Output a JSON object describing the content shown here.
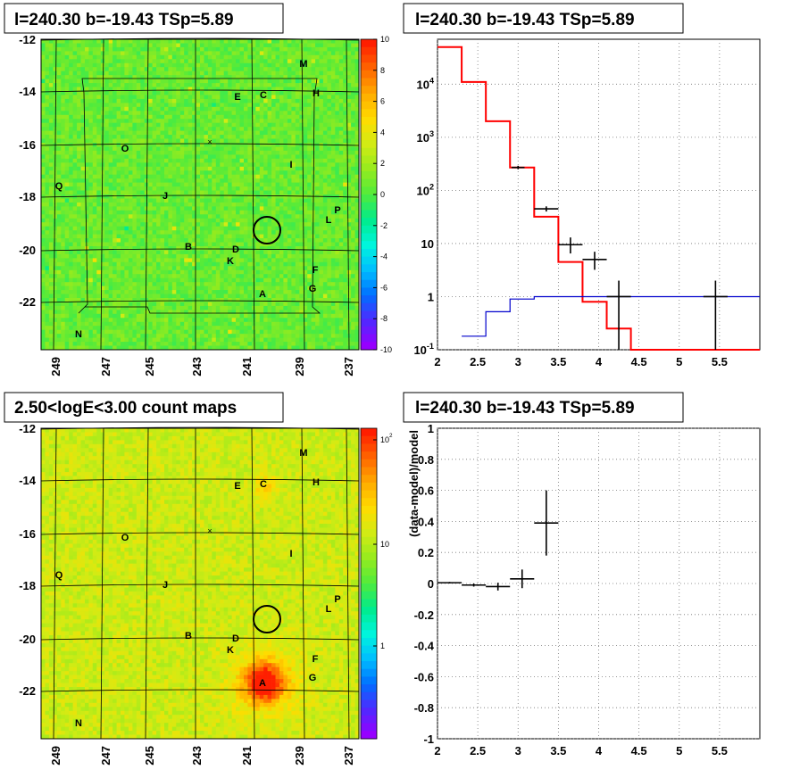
{
  "colors": {
    "background": "#ffffff",
    "model": "#ff0000",
    "background_model": "#0000cc",
    "data": "#000000",
    "grid": "#555555"
  },
  "chart_data": [
    {
      "type": "heatmap",
      "title": "l=240.30 b=-19.43 TSp=5.89",
      "xticks": [
        "249",
        "247",
        "245",
        "243",
        "241",
        "239",
        "237"
      ],
      "yticks": [
        "-12",
        "-14",
        "-16",
        "-18",
        "-20",
        "-22"
      ],
      "colorbar_ticks": [
        "10",
        "8",
        "6",
        "4",
        "2",
        "0",
        "-2",
        "-4",
        "-6",
        "-8",
        "-10"
      ],
      "zlim": [
        -10,
        10
      ],
      "sources": [
        "M",
        "E",
        "C",
        "H",
        "O",
        "I",
        "Q",
        "J",
        "L",
        "P",
        "B",
        "D",
        "K",
        "F",
        "G",
        "A",
        "N"
      ]
    },
    {
      "type": "line",
      "title": "l=240.30 b=-19.43 TSp=5.89",
      "xticks": [
        "2",
        "2.5",
        "3",
        "3.5",
        "4",
        "4.5",
        "5",
        "5.5"
      ],
      "yticks": [
        "10^4",
        "10^3",
        "10^2",
        "10",
        "1",
        "10^-1"
      ],
      "xlim": [
        2,
        6
      ],
      "ylim": [
        0.1,
        70000
      ],
      "log_y": true,
      "grid": true,
      "series": [
        {
          "values_step": {
            "edges": [
              2,
              2.3,
              2.6,
              2.9,
              3.2,
              3.5,
              3.8,
              4.1,
              4.4,
              6
            ],
            "values": [
              50000,
              11000,
              2000,
              270,
              32,
              4.5,
              0.8,
              0.25,
              0.1
            ]
          }
        },
        {
          "values_step": {
            "edges": [
              2.3,
              2.6,
              2.9,
              3.2,
              3.5,
              6
            ],
            "values": [
              0.18,
              0.52,
              0.9,
              1.0,
              1.0
            ]
          }
        },
        {
          "points": [
            {
              "x": 3.0,
              "y": 270,
              "xerr": 0.08,
              "ylo": 250,
              "yhi": 290
            },
            {
              "x": 3.35,
              "y": 45,
              "xerr": 0.15,
              "ylo": 40,
              "yhi": 50
            },
            {
              "x": 3.65,
              "y": 9.5,
              "xerr": 0.15,
              "ylo": 6.5,
              "yhi": 13
            },
            {
              "x": 3.95,
              "y": 5,
              "xerr": 0.15,
              "ylo": 3.2,
              "yhi": 7
            },
            {
              "x": 4.25,
              "y": 1.0,
              "xerr": 0.15,
              "ylo": 0.1,
              "yhi": 2.0
            },
            {
              "x": 5.45,
              "y": 1.0,
              "xerr": 0.15,
              "ylo": 0.1,
              "yhi": 2.0
            }
          ]
        }
      ]
    },
    {
      "type": "heatmap",
      "title": "2.50<logE<3.00 count maps",
      "xticks": [
        "249",
        "247",
        "245",
        "243",
        "241",
        "239",
        "237"
      ],
      "yticks": [
        "-12",
        "-14",
        "-16",
        "-18",
        "-20",
        "-22"
      ],
      "colorbar_ticks": [
        "10^2",
        "10",
        "1"
      ],
      "log_z": true,
      "sources": [
        "M",
        "E",
        "C",
        "H",
        "O",
        "I",
        "Q",
        "J",
        "L",
        "P",
        "B",
        "D",
        "K",
        "F",
        "G",
        "A",
        "N"
      ]
    },
    {
      "type": "scatter",
      "title": "l=240.30 b=-19.43 TSp=5.89",
      "ylabel": "(data-model)/model",
      "xticks": [
        "2",
        "2.5",
        "3",
        "3.5",
        "4",
        "4.5",
        "5",
        "5.5"
      ],
      "yticks": [
        "1",
        "0.8",
        "0.6",
        "0.4",
        "0.2",
        "0",
        "-0.2",
        "-0.4",
        "-0.6",
        "-0.8",
        "-1"
      ],
      "xlim": [
        2,
        6
      ],
      "ylim": [
        -1,
        1
      ],
      "grid": true,
      "points": [
        {
          "x": 2.15,
          "y": 0.005,
          "xerr": 0.15,
          "yerr": 0.005
        },
        {
          "x": 2.45,
          "y": -0.01,
          "xerr": 0.15,
          "yerr": 0.01
        },
        {
          "x": 2.75,
          "y": -0.02,
          "xerr": 0.15,
          "yerr": 0.025
        },
        {
          "x": 3.05,
          "y": 0.03,
          "xerr": 0.15,
          "yerr": 0.06
        },
        {
          "x": 3.35,
          "y": 0.39,
          "xerr": 0.15,
          "yerr": 0.21
        }
      ]
    }
  ]
}
